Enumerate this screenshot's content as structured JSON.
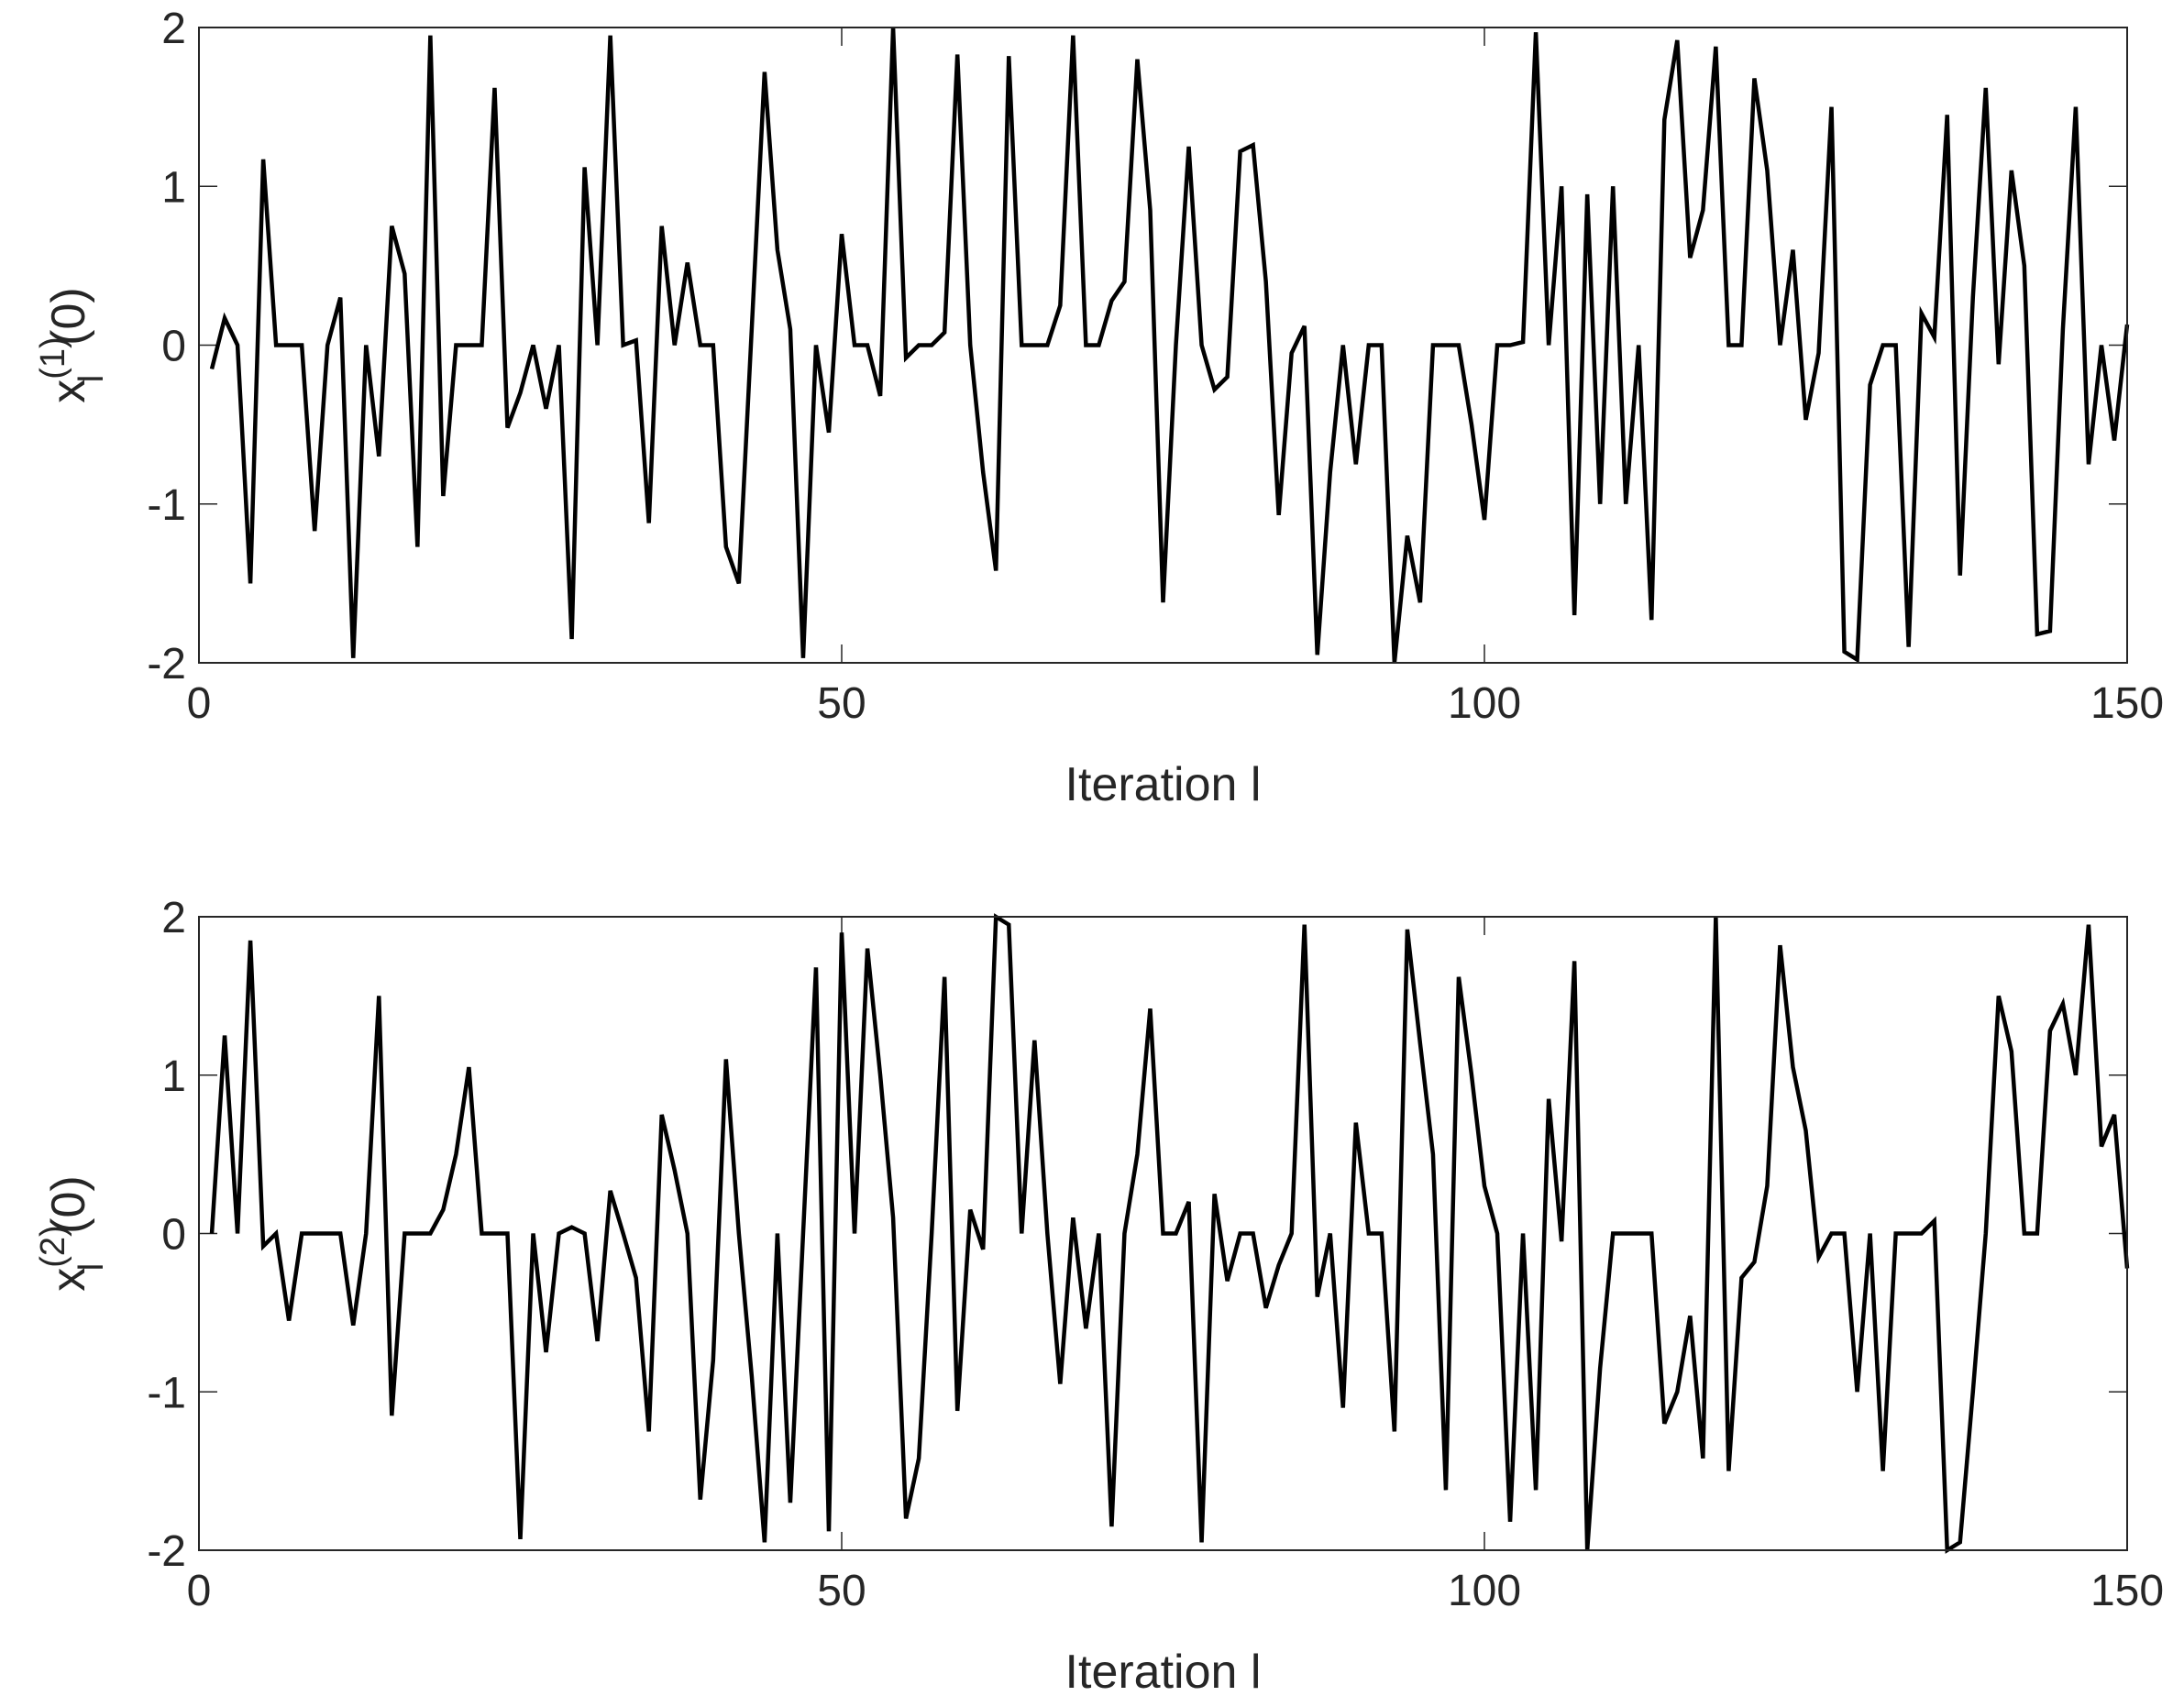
{
  "chart_data": [
    {
      "type": "line",
      "xlabel": "Iteration l",
      "ylabel": {
        "base": "x",
        "sub": "l",
        "sup": "(1)",
        "tail": "(0)"
      },
      "x": [
        1,
        2,
        3,
        4,
        5,
        6,
        7,
        8,
        9,
        10,
        11,
        12,
        13,
        14,
        15,
        16,
        17,
        18,
        19,
        20,
        21,
        22,
        23,
        24,
        25,
        26,
        27,
        28,
        29,
        30,
        31,
        32,
        33,
        34,
        35,
        36,
        37,
        38,
        39,
        40,
        41,
        42,
        43,
        44,
        45,
        46,
        47,
        48,
        49,
        50,
        51,
        52,
        53,
        54,
        55,
        56,
        57,
        58,
        59,
        60,
        61,
        62,
        63,
        64,
        65,
        66,
        67,
        68,
        69,
        70,
        71,
        72,
        73,
        74,
        75,
        76,
        77,
        78,
        79,
        80,
        81,
        82,
        83,
        84,
        85,
        86,
        87,
        88,
        89,
        90,
        91,
        92,
        93,
        94,
        95,
        96,
        97,
        98,
        99,
        100,
        101,
        102,
        103,
        104,
        105,
        106,
        107,
        108,
        109,
        110,
        111,
        112,
        113,
        114,
        115,
        116,
        117,
        118,
        119,
        120,
        121,
        122,
        123,
        124,
        125,
        126,
        127,
        128,
        129,
        130,
        131,
        132,
        133,
        134,
        135,
        136,
        137,
        138,
        139,
        140,
        141,
        142,
        143,
        144,
        145,
        146,
        147,
        148,
        149,
        150
      ],
      "series": [
        {
          "color": "#000000",
          "values": [
            -0.15,
            0.17,
            0,
            -1.5,
            1.17,
            0,
            0,
            0,
            -1.17,
            0,
            0.3,
            -1.97,
            0,
            -0.7,
            0.75,
            0.45,
            -1.27,
            1.95,
            -0.95,
            0,
            0,
            0,
            1.62,
            -0.52,
            -0.3,
            0,
            -0.4,
            0,
            -1.85,
            1.12,
            0,
            1.95,
            0,
            0.03,
            -1.12,
            0.75,
            0,
            0.52,
            0,
            0,
            -1.27,
            -1.5,
            0.1,
            1.72,
            0.6,
            0.1,
            -1.97,
            0,
            -0.55,
            0.7,
            0,
            0,
            -0.32,
            2.0,
            -0.08,
            0,
            0,
            0.08,
            1.83,
            0,
            -0.8,
            -1.42,
            1.82,
            0,
            0,
            0,
            0.25,
            1.95,
            0,
            0,
            0.28,
            0.4,
            1.8,
            0.85,
            -1.62,
            0,
            1.25,
            0,
            -0.28,
            -0.2,
            1.22,
            1.26,
            0.4,
            -1.07,
            -0.05,
            0.12,
            -1.95,
            -0.8,
            0,
            -0.75,
            0,
            0,
            -2,
            -1.2,
            -1.62,
            0,
            0,
            0,
            -0.5,
            -1.1,
            0,
            0,
            0.02,
            1.97,
            0,
            1.0,
            -1.7,
            0.95,
            -1.0,
            1.0,
            -1.0,
            0,
            -1.73,
            1.42,
            1.92,
            0.55,
            0.85,
            1.88,
            0,
            0,
            1.68,
            1.1,
            0,
            0.6,
            -0.47,
            -0.05,
            1.5,
            -1.93,
            -1.98,
            -0.25,
            0,
            0,
            -1.9,
            0.2,
            0.05,
            1.45,
            -1.45,
            0.3,
            1.62,
            -0.12,
            1.1,
            0.5,
            -1.82,
            -1.8,
            0.1,
            1.5,
            -0.75,
            0,
            -0.6,
            0.13
          ]
        }
      ],
      "xlim": [
        0,
        150
      ],
      "xticks": [
        0,
        50,
        100,
        150
      ],
      "ylim": [
        -2,
        2
      ],
      "yticks": [
        -2,
        -1,
        0,
        1,
        2
      ],
      "grid": false
    },
    {
      "type": "line",
      "xlabel": "Iteration l",
      "ylabel": {
        "base": "x",
        "sub": "l",
        "sup": "(2)",
        "tail": "(0)"
      },
      "x": [
        1,
        2,
        3,
        4,
        5,
        6,
        7,
        8,
        9,
        10,
        11,
        12,
        13,
        14,
        15,
        16,
        17,
        18,
        19,
        20,
        21,
        22,
        23,
        24,
        25,
        26,
        27,
        28,
        29,
        30,
        31,
        32,
        33,
        34,
        35,
        36,
        37,
        38,
        39,
        40,
        41,
        42,
        43,
        44,
        45,
        46,
        47,
        48,
        49,
        50,
        51,
        52,
        53,
        54,
        55,
        56,
        57,
        58,
        59,
        60,
        61,
        62,
        63,
        64,
        65,
        66,
        67,
        68,
        69,
        70,
        71,
        72,
        73,
        74,
        75,
        76,
        77,
        78,
        79,
        80,
        81,
        82,
        83,
        84,
        85,
        86,
        87,
        88,
        89,
        90,
        91,
        92,
        93,
        94,
        95,
        96,
        97,
        98,
        99,
        100,
        101,
        102,
        103,
        104,
        105,
        106,
        107,
        108,
        109,
        110,
        111,
        112,
        113,
        114,
        115,
        116,
        117,
        118,
        119,
        120,
        121,
        122,
        123,
        124,
        125,
        126,
        127,
        128,
        129,
        130,
        131,
        132,
        133,
        134,
        135,
        136,
        137,
        138,
        139,
        140,
        141,
        142,
        143,
        144,
        145,
        146,
        147,
        148,
        149,
        150
      ],
      "series": [
        {
          "color": "#000000",
          "values": [
            0,
            1.25,
            0,
            1.85,
            -0.08,
            0,
            -0.55,
            0,
            0,
            0,
            0,
            -0.58,
            0,
            1.5,
            -1.15,
            0,
            0,
            0,
            0.15,
            0.5,
            1.05,
            0,
            0,
            0,
            -1.93,
            0,
            -0.75,
            0,
            0.04,
            0,
            -0.68,
            0.27,
            0,
            -0.28,
            -1.25,
            0.75,
            0.4,
            0,
            -1.68,
            -0.8,
            1.1,
            0,
            -0.9,
            -1.95,
            0,
            -1.7,
            0,
            1.68,
            -1.88,
            1.9,
            0,
            1.8,
            1.0,
            0.1,
            -1.8,
            -1.42,
            0,
            1.62,
            -1.12,
            0.15,
            -0.1,
            2.0,
            1.95,
            0,
            1.22,
            0,
            -0.95,
            0.1,
            -0.6,
            0,
            -1.85,
            0,
            0.5,
            1.42,
            0,
            0,
            0.2,
            -1.95,
            0.25,
            -0.3,
            0,
            0,
            -0.47,
            -0.2,
            0,
            1.95,
            -0.4,
            0,
            -1.1,
            0.7,
            0,
            0,
            -1.25,
            1.92,
            1.2,
            0.5,
            -1.62,
            1.62,
            1.0,
            0.3,
            0,
            -1.82,
            0,
            -1.62,
            0.85,
            -0.05,
            1.72,
            -2.0,
            -0.85,
            0,
            0,
            0,
            0,
            -1.2,
            -1.0,
            -0.52,
            -1.42,
            2.0,
            -1.5,
            -0.28,
            -0.18,
            0.3,
            1.82,
            1.05,
            0.65,
            -0.15,
            0,
            0,
            -1.0,
            0,
            -1.5,
            0,
            0,
            0,
            0.08,
            -2.0,
            -1.95,
            -1.0,
            0,
            1.5,
            1.15,
            0,
            0,
            1.28,
            1.45,
            1.0,
            1.95,
            0.55,
            0.75,
            -0.22
          ]
        }
      ],
      "xlim": [
        0,
        150
      ],
      "xticks": [
        0,
        50,
        100,
        150
      ],
      "ylim": [
        -2,
        2
      ],
      "yticks": [
        -2,
        -1,
        0,
        1,
        2
      ],
      "grid": false
    }
  ]
}
